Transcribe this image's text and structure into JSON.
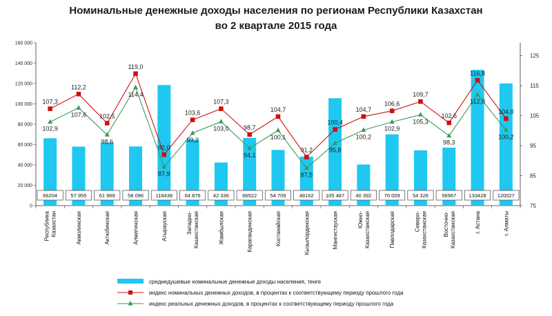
{
  "chart_data": {
    "type": "bar",
    "title_line1": "Номинальные денежные доходы населения по регионам Республики Казахстан",
    "title_line2": "во 2 квартале  2015 года",
    "categories": [
      [
        "Республика",
        "Казахстан"
      ],
      [
        "Акмолинская"
      ],
      [
        "Актюбинская"
      ],
      [
        "Алматинская"
      ],
      [
        "Атырауская"
      ],
      [
        "Западно-",
        "Казахстанская"
      ],
      [
        "Жамбылская"
      ],
      [
        "Карагандинская"
      ],
      [
        "Костанайская"
      ],
      [
        "Кызылординская"
      ],
      [
        "Мангистауская"
      ],
      [
        "Южно-",
        "Казахстанская"
      ],
      [
        "Павлодарская"
      ],
      [
        "Северо-",
        "Казахстанская"
      ],
      [
        "Восточно-",
        "Казахстанская"
      ],
      [
        "г. Астана"
      ],
      [
        "г. Алматы"
      ]
    ],
    "series": [
      {
        "name": "среднедушевые  номинальные денежные доходы населения, тенге",
        "kind": "bar",
        "axis": "left",
        "color": "#1ec8f0",
        "values": [
          66204,
          57955,
          61969,
          58096,
          118438,
          64876,
          42336,
          66522,
          54709,
          48162,
          105487,
          40392,
          70009,
          54326,
          56967,
          133428,
          120027
        ],
        "value_labels": [
          "66204",
          "57 955",
          "61 969",
          "58 096",
          "118438",
          "64 876",
          "42 336",
          "66522",
          "54 709",
          "48162",
          "105 487",
          "40 392",
          "70 009",
          "54 326",
          "56967",
          "133428",
          "120027"
        ]
      },
      {
        "name": "индекс номинальных денежных доходов, в процентах к соответствующему   периоду прошлого года",
        "kind": "line",
        "axis": "right",
        "color": "#cc1111",
        "marker": "square",
        "values": [
          107.3,
          112.2,
          102.5,
          119.0,
          92.0,
          103.6,
          107.3,
          98.7,
          104.7,
          91.2,
          100.4,
          104.7,
          106.6,
          109.7,
          102.6,
          116.8,
          104.0
        ],
        "value_labels": [
          "107,3",
          "112,2",
          "102,5",
          "119,0",
          "92,0",
          "103,6",
          "107,3",
          "98,7",
          "104,7",
          "91,2",
          "100,4",
          "104,7",
          "106,6",
          "109,7",
          "102,6",
          "116,8",
          "104,0"
        ]
      },
      {
        "name": "индекс реальных денежных доходов, в процентах к соответствующему  периоду прошлого года",
        "kind": "line",
        "axis": "right",
        "color": "#3a9a5a",
        "marker": "triangle",
        "values": [
          102.9,
          107.6,
          98.6,
          114.4,
          87.9,
          99.2,
          103.0,
          94.1,
          100.1,
          87.5,
          95.8,
          100.2,
          102.9,
          105.3,
          98.3,
          112.0,
          100.2
        ],
        "value_labels": [
          "102,9",
          "107,6",
          "98,6",
          "114,4",
          "87,9",
          "99,2",
          "103,0",
          "94,1",
          "100,1",
          "87,5",
          "95,8",
          "100,2",
          "102,9",
          "105,3",
          "98,3",
          "112,0",
          "100,2"
        ]
      }
    ],
    "left_axis": {
      "ylim": [
        0,
        160000
      ],
      "ticks": [
        0,
        20000,
        40000,
        60000,
        80000,
        100000,
        120000,
        140000,
        160000
      ],
      "tick_labels": [
        "0",
        "20 000",
        "40 000",
        "60 000",
        "80 000",
        "100 000",
        "120 000",
        "140 000",
        "160 000"
      ]
    },
    "right_axis": {
      "ylim": [
        75,
        129.3
      ],
      "ticks": [
        75,
        85,
        95,
        105,
        115,
        125
      ],
      "tick_labels": [
        "75",
        "85",
        "95",
        "105",
        "115",
        "125"
      ]
    },
    "legend_position": "bottom"
  }
}
